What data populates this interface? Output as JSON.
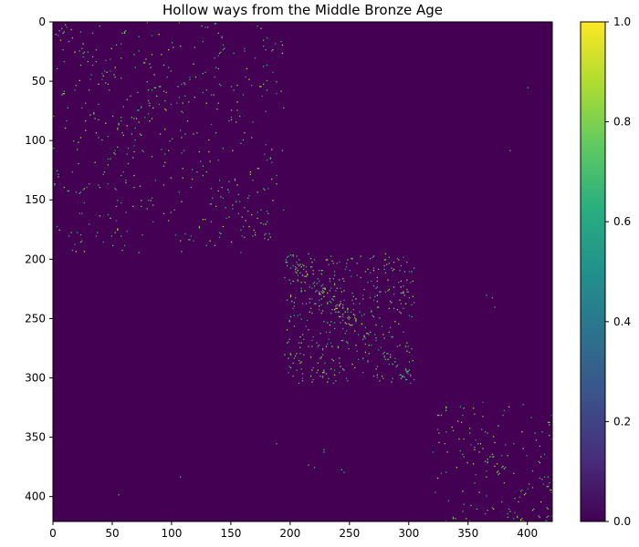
{
  "chart_data": {
    "type": "heatmap",
    "title": "Hollow ways from the Middle Bronze Age",
    "xlabel": "",
    "ylabel": "",
    "matrix_size": 421,
    "xlim": [
      0,
      421
    ],
    "ylim": [
      421,
      0
    ],
    "x_ticks": [
      0,
      50,
      100,
      150,
      200,
      250,
      300,
      350,
      400
    ],
    "y_ticks": [
      0,
      50,
      100,
      150,
      200,
      250,
      300,
      350,
      400
    ],
    "colormap": "viridis",
    "background_value": 0.0,
    "colorbar": {
      "range": [
        0.0,
        1.0
      ],
      "ticks": [
        "0.0",
        "0.2",
        "0.4",
        "0.6",
        "0.8",
        "1.0"
      ]
    },
    "blocks": [
      {
        "range": [
          0,
          195
        ],
        "density": 0.012
      },
      {
        "range": [
          195,
          305
        ],
        "density": 0.03
      },
      {
        "range": [
          320,
          421
        ],
        "density": 0.012
      }
    ],
    "scattered_points": [
      [
        55,
        400
      ],
      [
        108,
        385
      ],
      [
        383,
        107
      ],
      [
        398,
        55
      ],
      [
        373,
        215
      ],
      [
        375,
        220
      ],
      [
        379,
        245
      ],
      [
        377,
        243
      ],
      [
        360,
        228
      ],
      [
        362,
        228
      ],
      [
        230,
        365
      ],
      [
        232,
        370
      ],
      [
        240,
        372
      ],
      [
        355,
        188
      ],
      [
        410,
        405
      ],
      [
        420,
        415
      ],
      [
        418,
        395
      ]
    ]
  }
}
